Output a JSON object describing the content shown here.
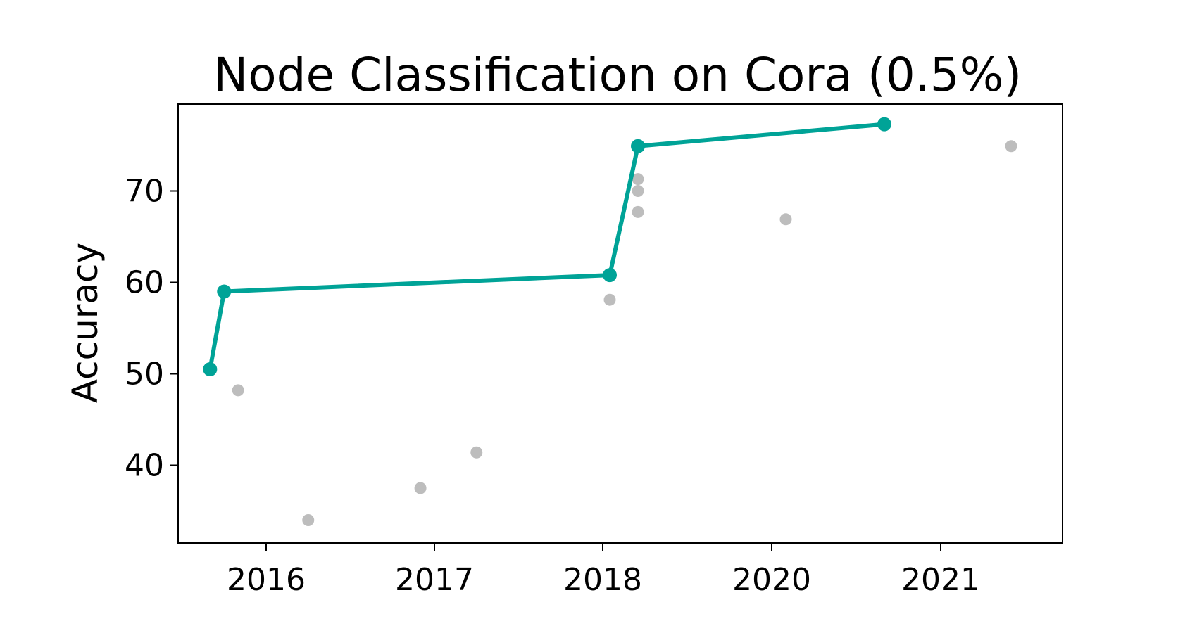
{
  "chart_data": {
    "type": "scatter",
    "title": "Node Classification on Cora (0.5%)",
    "xlabel": "",
    "ylabel": "Accuracy",
    "x_tick_labels": [
      "2016",
      "2017",
      "2018",
      "2020",
      "2021"
    ],
    "y_ticks": [
      40,
      50,
      60,
      70
    ],
    "ylim": [
      31.5,
      79.5
    ],
    "grid": false,
    "legend": "none",
    "colors": {
      "sota_line": "#00a397",
      "other_points": "#bdbdbd",
      "axes": "#000000"
    },
    "series": [
      {
        "kind": "state-of-the-art-line",
        "points": [
          {
            "x": "2015-09",
            "y": 50.5
          },
          {
            "x": "2015-10",
            "y": 59.0
          },
          {
            "x": "2018-02",
            "y": 60.8
          },
          {
            "x": "2018-06",
            "y": 74.9
          },
          {
            "x": "2020-09",
            "y": 77.3
          }
        ]
      },
      {
        "kind": "other-results",
        "points": [
          {
            "x": "2015-11",
            "y": 48.2
          },
          {
            "x": "2016-04",
            "y": 34.0
          },
          {
            "x": "2016-12",
            "y": 37.5
          },
          {
            "x": "2017-04",
            "y": 41.4
          },
          {
            "x": "2018-02",
            "y": 58.1
          },
          {
            "x": "2018-06",
            "y": 71.3
          },
          {
            "x": "2018-06",
            "y": 70.0
          },
          {
            "x": "2018-06",
            "y": 67.7
          },
          {
            "x": "2020-02",
            "y": 66.9
          },
          {
            "x": "2021-06",
            "y": 74.9
          }
        ]
      }
    ]
  }
}
